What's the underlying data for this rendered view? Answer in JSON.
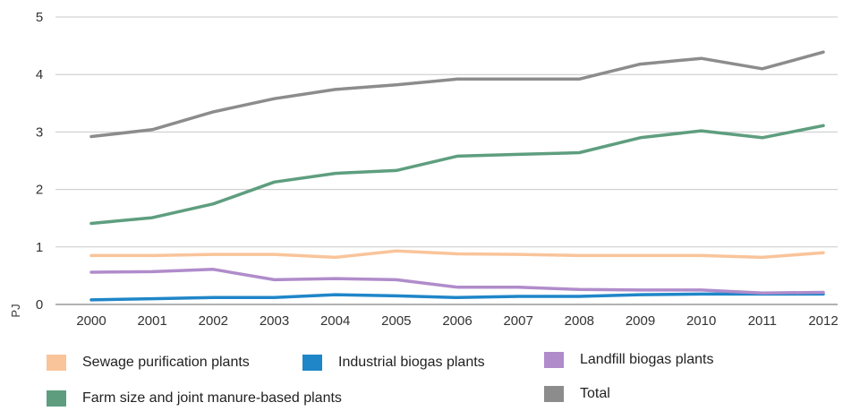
{
  "chart_data": {
    "type": "line",
    "title": "",
    "xlabel": "",
    "ylabel": "PJ",
    "ylim": [
      0,
      5
    ],
    "yticks": [
      "0",
      "1",
      "2",
      "3",
      "4",
      "5"
    ],
    "categories": [
      "2000",
      "2001",
      "2002",
      "2003",
      "2004",
      "2005",
      "2006",
      "2007",
      "2008",
      "2009",
      "2010",
      "2011",
      "2012"
    ],
    "grid": true,
    "legend_position": "bottom",
    "series": [
      {
        "name": "Sewage purification plants",
        "color": "#f9c49a",
        "values": [
          0.85,
          0.85,
          0.87,
          0.87,
          0.82,
          0.93,
          0.88,
          0.87,
          0.85,
          0.85,
          0.85,
          0.82,
          0.9
        ]
      },
      {
        "name": "Industrial biogas plants",
        "color": "#1f86c8",
        "values": [
          0.08,
          0.1,
          0.12,
          0.12,
          0.17,
          0.15,
          0.12,
          0.14,
          0.14,
          0.17,
          0.18,
          0.18,
          0.18
        ]
      },
      {
        "name": "Landfill biogas plants",
        "color": "#b08ccb",
        "values": [
          0.56,
          0.57,
          0.61,
          0.43,
          0.45,
          0.43,
          0.3,
          0.3,
          0.26,
          0.25,
          0.25,
          0.2,
          0.21
        ]
      },
      {
        "name": "Farm size and joint manure-based plants",
        "color": "#5e9e7f",
        "values": [
          1.41,
          1.51,
          1.75,
          2.13,
          2.28,
          2.33,
          2.58,
          2.61,
          2.64,
          2.9,
          3.02,
          2.9,
          3.11
        ]
      },
      {
        "name": "Total",
        "color": "#8c8c8c",
        "values": [
          2.92,
          3.04,
          3.35,
          3.58,
          3.74,
          3.82,
          3.92,
          3.92,
          3.92,
          4.18,
          4.28,
          4.1,
          4.39
        ]
      }
    ],
    "legend": {
      "sewage": "Sewage purification plants",
      "industrial": "Industrial biogas plants",
      "landfill": "Landfill biogas plants",
      "farm": "Farm size and joint manure-based plants",
      "total": "Total"
    }
  }
}
